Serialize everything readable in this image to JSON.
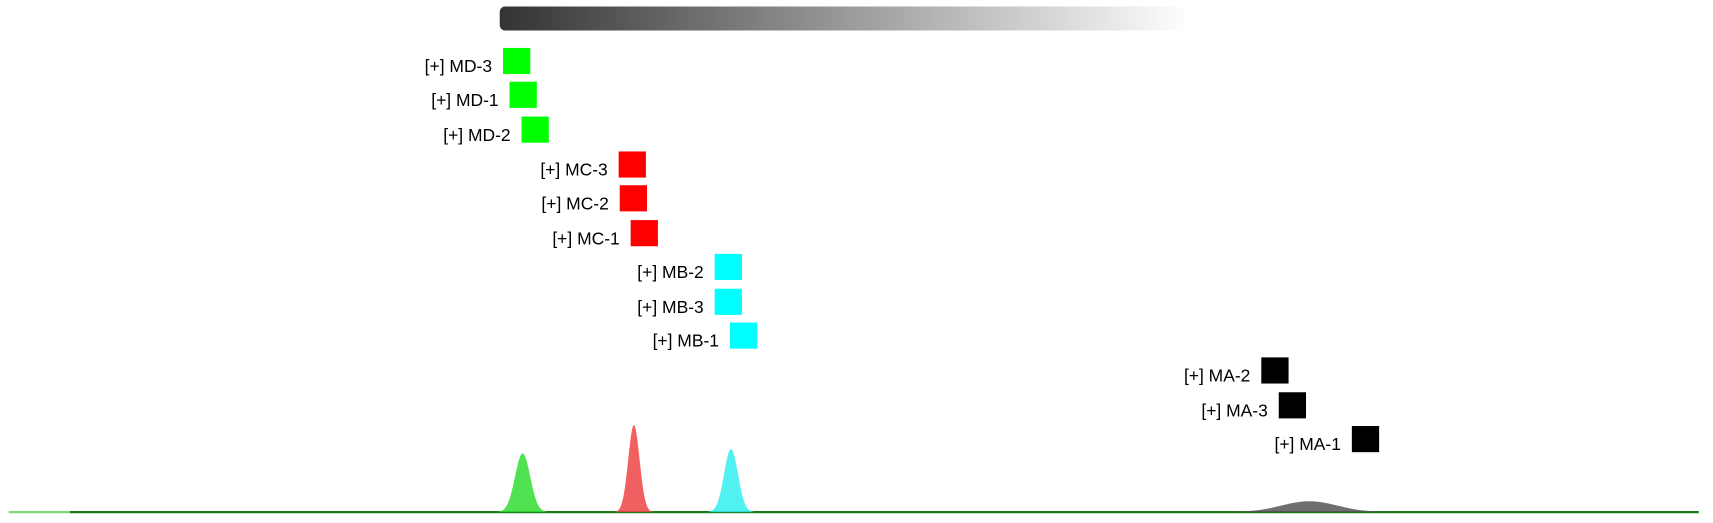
{
  "groups": [
    {
      "color": "#00ff00",
      "peak_color": "#33dd33",
      "items": [
        "[+] MD-3",
        "[+] MD-1",
        "[+] MD-2"
      ]
    },
    {
      "color": "#ff0000",
      "peak_color": "#ee4444",
      "items": [
        "[+] MC-3",
        "[+] MC-2",
        "[+] MC-1"
      ]
    },
    {
      "color": "#00ffff",
      "peak_color": "#33eeee",
      "items": [
        "[+] MB-2",
        "[+] MB-3",
        "[+] MB-1"
      ]
    },
    {
      "color": "#000000",
      "peak_color": "#555555",
      "items": [
        "[+] MA-2",
        "[+] MA-3",
        "[+] MA-1"
      ]
    }
  ]
}
